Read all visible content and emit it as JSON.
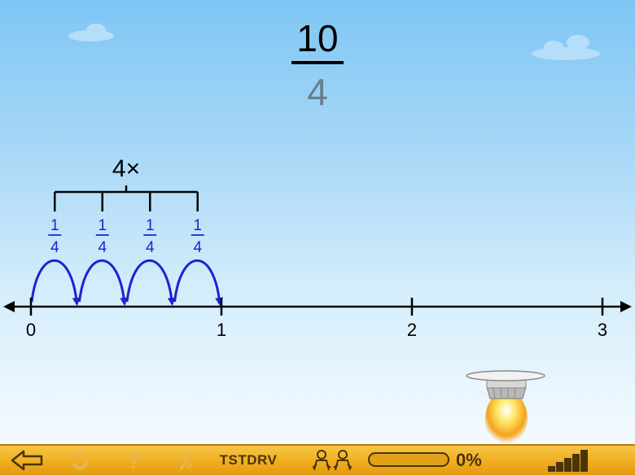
{
  "fraction": {
    "numerator": "10",
    "denominator": "4"
  },
  "grouping": {
    "label": "4×"
  },
  "jumps": [
    {
      "num": "1",
      "den": "4"
    },
    {
      "num": "1",
      "den": "4"
    },
    {
      "num": "1",
      "den": "4"
    },
    {
      "num": "1",
      "den": "4"
    }
  ],
  "number_line": {
    "ticks": [
      "0",
      "1",
      "2",
      "3"
    ]
  },
  "toolbar": {
    "back_icon": "back-arrow-icon",
    "refresh_icon": "refresh-icon",
    "help_icon": "question-icon",
    "tool_icon": "slash-icon",
    "code": "TSTDRV",
    "users_icon": "two-users-icon",
    "progress": 0,
    "progress_text": "0%",
    "level_icon": "signal-bars-icon"
  },
  "colors": {
    "jump": "#1e22d4",
    "toolbar": "#f0ae1f",
    "disabled_icon": "#e8b64a"
  }
}
